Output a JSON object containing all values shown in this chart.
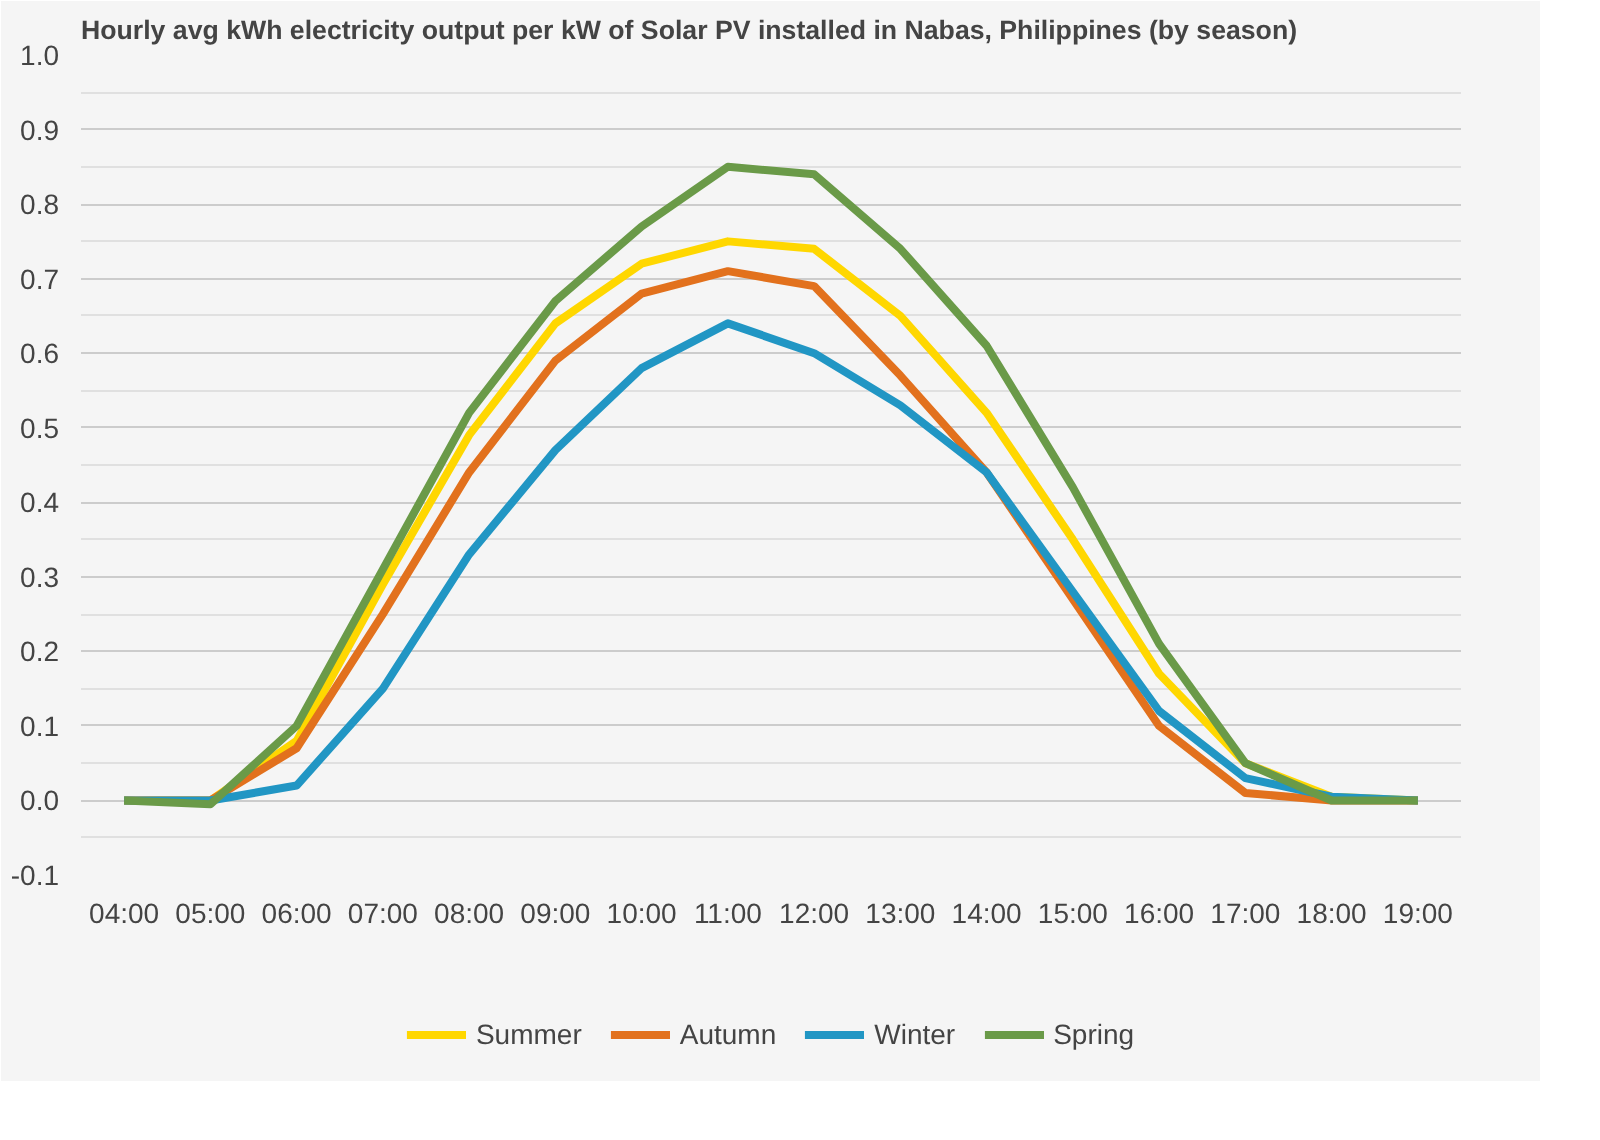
{
  "chart_data": {
    "type": "line",
    "title": "Hourly avg kWh electricity output per kW of Solar PV installed in Nabas, Philippines (by season)",
    "x": [
      4,
      5,
      6,
      7,
      8,
      9,
      10,
      11,
      12,
      13,
      14,
      15,
      16,
      17,
      18,
      19
    ],
    "series": [
      {
        "name": "Summer",
        "color": "#ffd700",
        "values": [
          0,
          0,
          0.08,
          0.29,
          0.49,
          0.64,
          0.72,
          0.75,
          0.74,
          0.65,
          0.52,
          0.35,
          0.17,
          0.05,
          0.005,
          0
        ]
      },
      {
        "name": "Autumn",
        "color": "#e2711d",
        "values": [
          0,
          0,
          0.07,
          0.25,
          0.44,
          0.59,
          0.68,
          0.71,
          0.69,
          0.57,
          0.44,
          0.27,
          0.1,
          0.01,
          0,
          0
        ]
      },
      {
        "name": "Winter",
        "color": "#2196c4",
        "values": [
          0,
          0,
          0.02,
          0.15,
          0.33,
          0.47,
          0.58,
          0.64,
          0.6,
          0.53,
          0.44,
          0.28,
          0.12,
          0.03,
          0.005,
          0
        ]
      },
      {
        "name": "Spring",
        "color": "#6a9a48",
        "values": [
          0,
          -0.005,
          0.1,
          0.31,
          0.52,
          0.67,
          0.77,
          0.85,
          0.84,
          0.74,
          0.61,
          0.42,
          0.21,
          0.05,
          0,
          0
        ]
      }
    ],
    "xlim": [
      3.5,
      19.5
    ],
    "xticks": [
      {
        "value": 4,
        "label": "04:00"
      },
      {
        "value": 5,
        "label": "05:00"
      },
      {
        "value": 6,
        "label": "06:00"
      },
      {
        "value": 7,
        "label": "07:00"
      },
      {
        "value": 8,
        "label": "08:00"
      },
      {
        "value": 9,
        "label": "09:00"
      },
      {
        "value": 10,
        "label": "10:00"
      },
      {
        "value": 11,
        "label": "11:00"
      },
      {
        "value": 12,
        "label": "12:00"
      },
      {
        "value": 13,
        "label": "13:00"
      },
      {
        "value": 14,
        "label": "14:00"
      },
      {
        "value": 15,
        "label": "15:00"
      },
      {
        "value": 16,
        "label": "16:00"
      },
      {
        "value": 17,
        "label": "17:00"
      },
      {
        "value": 18,
        "label": "18:00"
      },
      {
        "value": 19,
        "label": "19:00"
      }
    ],
    "ylim": [
      -0.1,
      1.0
    ],
    "yticks": [
      -0.1,
      {
        "value": 0,
        "label": "0.0"
      },
      0.1,
      0.2,
      0.3,
      0.4,
      0.5,
      0.6,
      0.7,
      0.8,
      0.9,
      {
        "value": 1,
        "label": "1.0"
      }
    ],
    "grid": "y",
    "legend": "bottom",
    "marker": "none",
    "line_style": "solid"
  }
}
